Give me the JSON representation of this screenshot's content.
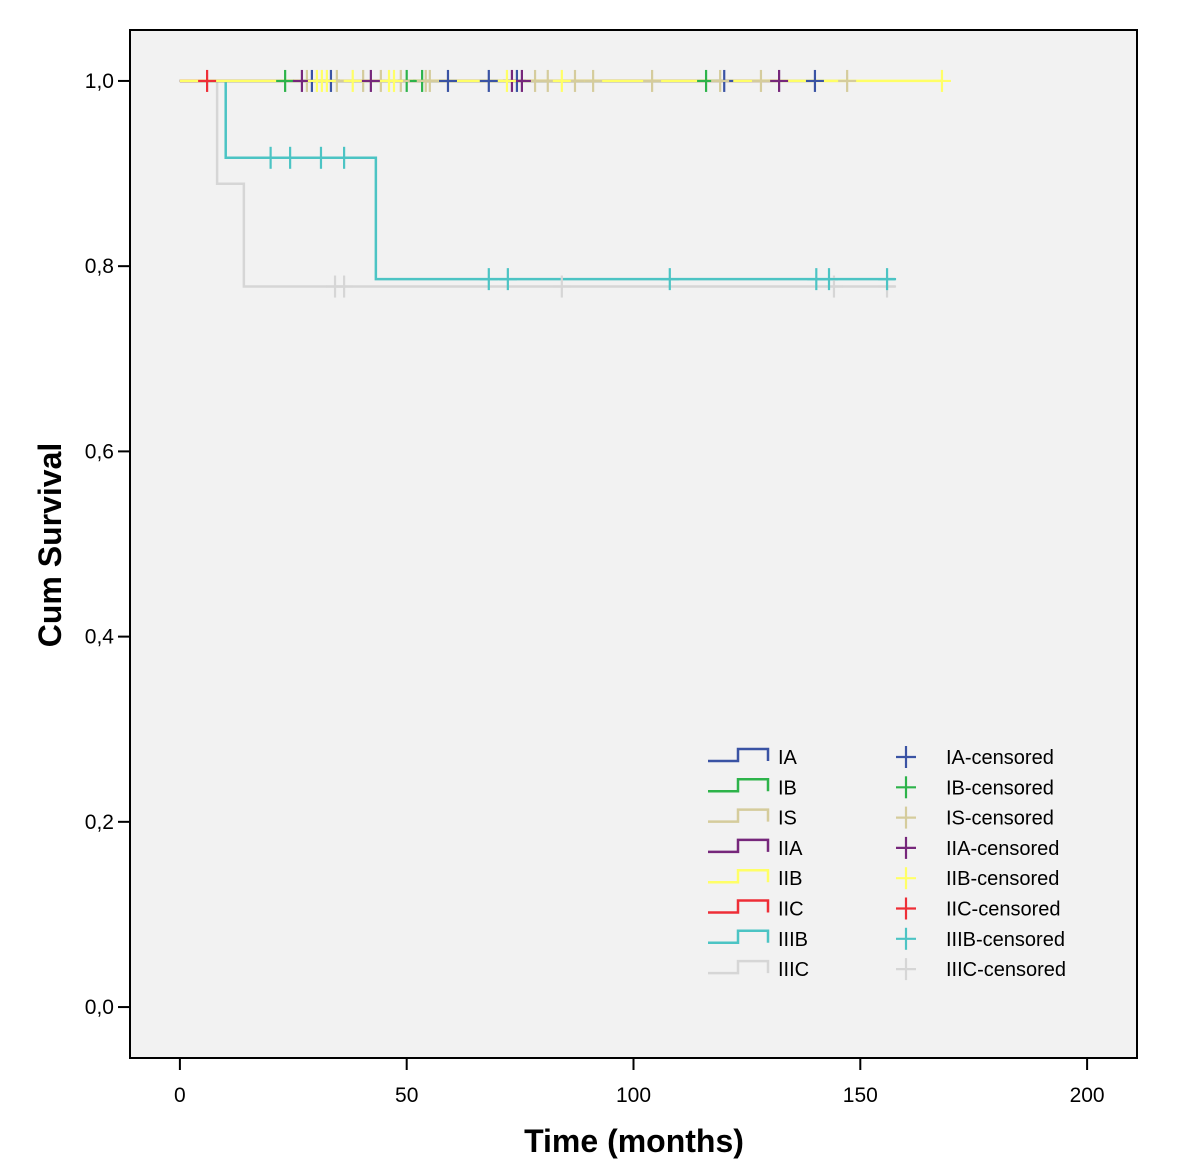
{
  "chart_data": {
    "type": "line",
    "subtype": "kaplan-meier",
    "xlabel": "Time (months)",
    "ylabel": "Cum Survival",
    "xlim": [
      -11,
      211
    ],
    "ylim": [
      -0.055,
      1.055
    ],
    "xticks": [
      0,
      50,
      100,
      150,
      200
    ],
    "xtick_labels": [
      "0",
      "50",
      "100",
      "150",
      "200"
    ],
    "yticks": [
      0.0,
      0.2,
      0.4,
      0.6,
      0.8,
      1.0
    ],
    "ytick_labels": [
      "0,0",
      "0,2",
      "0,4",
      "0,6",
      "0,8",
      "1,0"
    ],
    "grid": false,
    "legend_placement": "bottom-right",
    "background": "#f2f2f2",
    "series": [
      {
        "name": "IIIC",
        "censored_label": "IIIC-censored",
        "color": "#d6d6d6",
        "steps": [
          [
            0,
            1.0
          ],
          [
            8.2,
            0.889
          ],
          [
            14.1,
            0.778
          ],
          [
            157.7,
            0.778
          ]
        ],
        "censored": [
          34.2,
          36.2,
          84.2,
          144.2,
          155.9
        ]
      },
      {
        "name": "IIIB",
        "censored_label": "IIIB-censored",
        "color": "#4cc4c4",
        "steps": [
          [
            0,
            1.0
          ],
          [
            10.1,
            0.917
          ],
          [
            43.2,
            0.786
          ],
          [
            157.7,
            0.786
          ]
        ],
        "censored": [
          20.0,
          24.3,
          31.1,
          36.2,
          68.1,
          72.3,
          108.0,
          140.3,
          143.1,
          155.9
        ]
      },
      {
        "name": "IA",
        "censored_label": "IA-censored",
        "color": "#3a53a4",
        "steps": [
          [
            0,
            1.0
          ],
          [
            140,
            1.0
          ]
        ],
        "censored": [
          29.1,
          33.3,
          59.1,
          68.1,
          74.3,
          120.0,
          140.0
        ]
      },
      {
        "name": "IB",
        "censored_label": "IB-censored",
        "color": "#2db34a",
        "steps": [
          [
            0,
            1.0
          ],
          [
            116,
            1.0
          ]
        ],
        "censored": [
          23.2,
          50.0,
          53.4,
          116.0
        ]
      },
      {
        "name": "IS",
        "censored_label": "IS-censored",
        "color": "#d5cc9c",
        "steps": [
          [
            0,
            1.0
          ],
          [
            147.1,
            1.0
          ]
        ],
        "censored": [
          28.0,
          34.6,
          40.4,
          44.3,
          48.7,
          54.2,
          55.1,
          78.3,
          81.1,
          87.1,
          91.1,
          104.1,
          119.1,
          128.1,
          147.1
        ]
      },
      {
        "name": "IIA",
        "censored_label": "IIA-censored",
        "color": "#76277b",
        "steps": [
          [
            0,
            1.0
          ],
          [
            132.1,
            1.0
          ]
        ],
        "censored": [
          26.9,
          42.1,
          73.2,
          75.4,
          132.1
        ]
      },
      {
        "name": "IIC",
        "censored_label": "IIC-censored",
        "color": "#ee2e37",
        "steps": [
          [
            0,
            1.0
          ],
          [
            6.0,
            1.0
          ]
        ],
        "censored": [
          6.0
        ]
      },
      {
        "name": "IIB",
        "censored_label": "IIB-censored",
        "color": "#ffff66",
        "steps": [
          [
            0,
            1.0
          ],
          [
            168,
            1.0
          ]
        ],
        "censored": [
          30.2,
          31.3,
          32.4,
          38.1,
          46.1,
          47.2,
          72.1,
          84.2,
          168.0
        ]
      }
    ],
    "legend_order": [
      "IA",
      "IB",
      "IS",
      "IIA",
      "IIB",
      "IIC",
      "IIIB",
      "IIIC"
    ]
  }
}
